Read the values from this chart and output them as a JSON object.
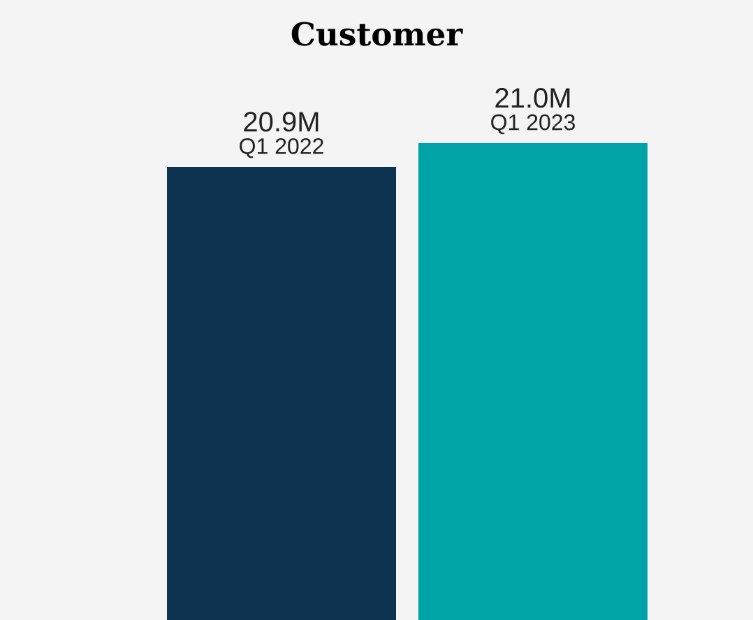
{
  "chart_data": {
    "type": "bar",
    "title": "Customer",
    "categories": [
      "Q1 2022",
      "Q1 2023"
    ],
    "values": [
      20.9,
      21.0
    ],
    "colors": [
      "#0d3351",
      "#00a4a6"
    ],
    "value_labels": [
      "20.9M",
      "21.0M"
    ],
    "ylim": [
      19,
      21.6
    ],
    "tick_labels": "x"
  }
}
